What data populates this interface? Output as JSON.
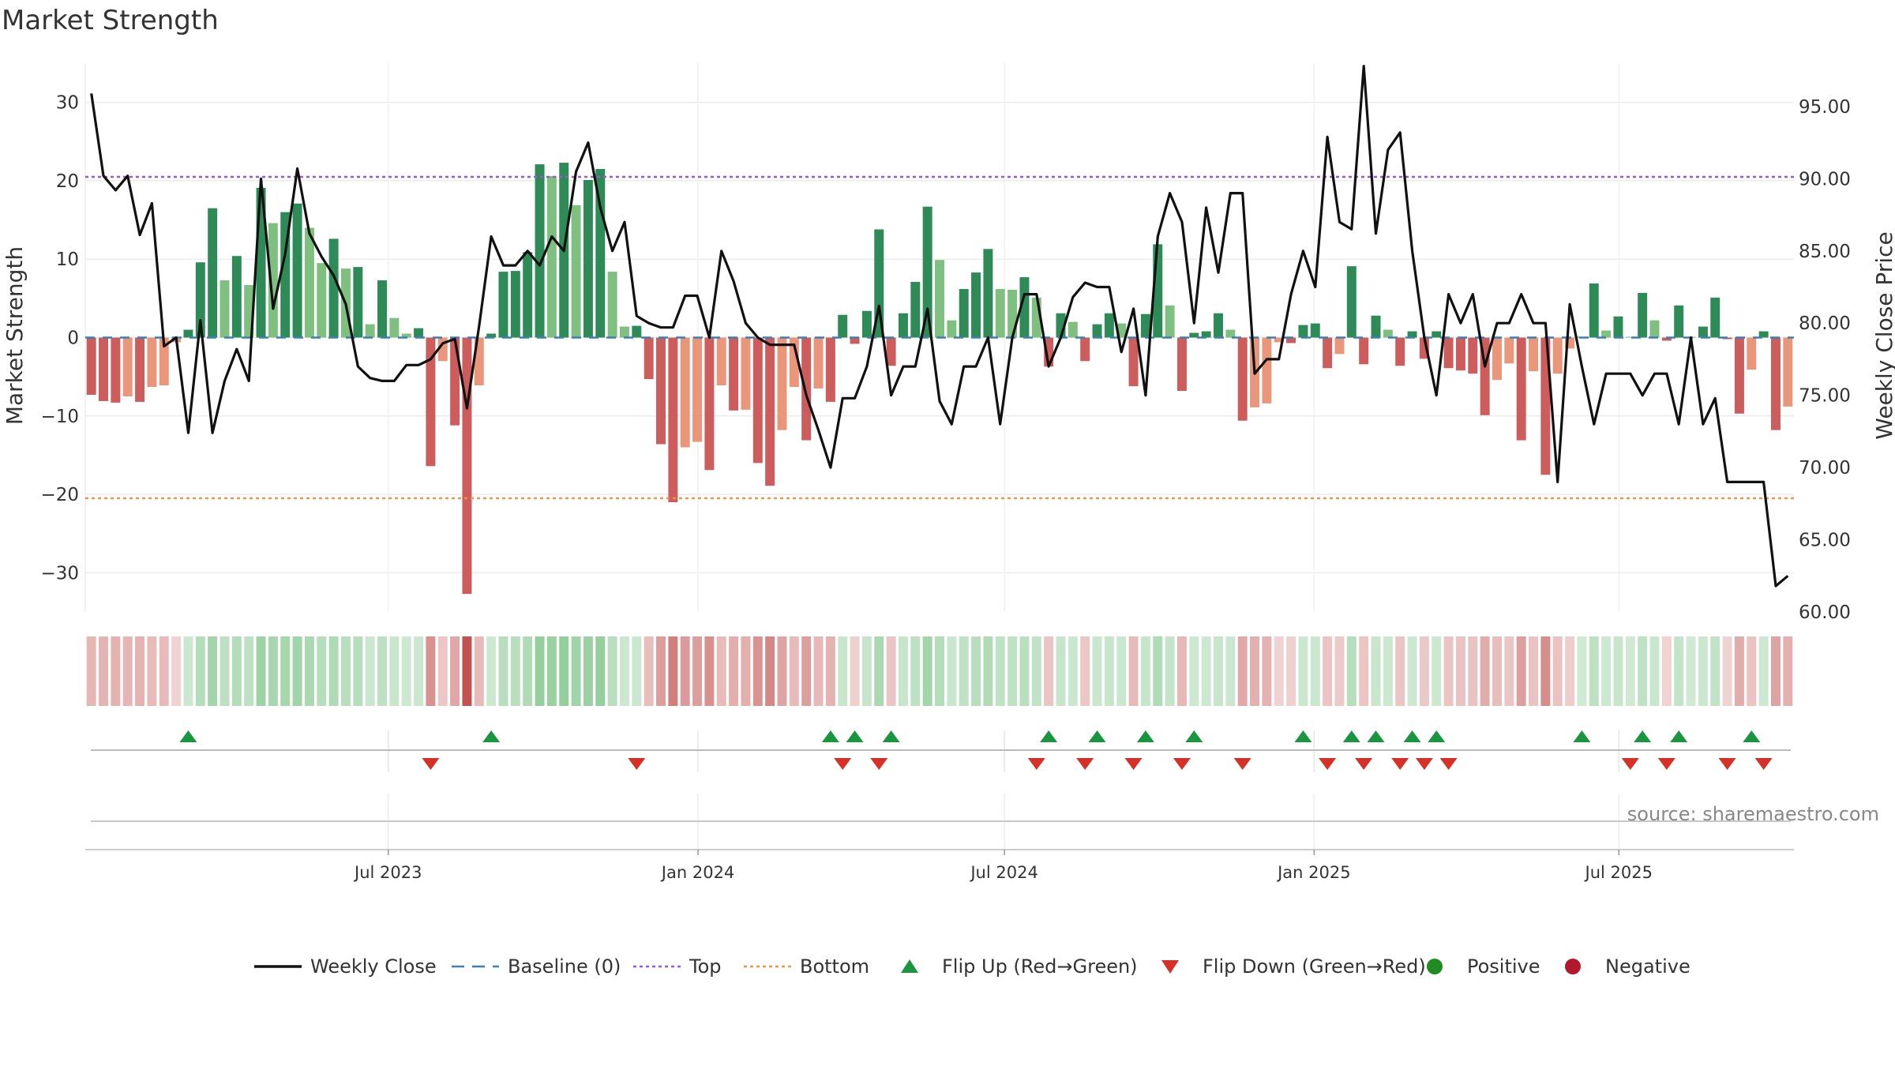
{
  "chart_data": {
    "type": "bar",
    "title": "Market Strength",
    "ylabel": "Market Strength",
    "ylabel_right": "Weekly Close Price",
    "ylim": [
      -35,
      35
    ],
    "yticks": [
      30,
      20,
      10,
      0,
      -10,
      -20,
      -30
    ],
    "ytick_labels": [
      "30",
      "20",
      "10",
      "0",
      "−10",
      "−20",
      "−30"
    ],
    "ylim_right": [
      60,
      98
    ],
    "yticks_right": [
      95,
      90,
      85,
      80,
      75,
      70,
      65,
      60
    ],
    "ytick_labels_right": [
      "95.00",
      "90.00",
      "85.00",
      "80.00",
      "75.00",
      "70.00",
      "65.00",
      "60.00"
    ],
    "top_line": 20.5,
    "bottom_line": -20.5,
    "x_start": "2023-01-02",
    "x_end": "2025-10-13",
    "date_ticks": [
      {
        "date": "2023-07-01",
        "label": "Jul 2023"
      },
      {
        "date": "2024-01-01",
        "label": "Jan 2024"
      },
      {
        "date": "2024-07-01",
        "label": "Jul 2024"
      },
      {
        "date": "2025-01-01",
        "label": "Jan 2025"
      },
      {
        "date": "2025-07-01",
        "label": "Jul 2025"
      }
    ],
    "strength": [
      -7.3,
      -8.1,
      -8.3,
      -7.5,
      -8.2,
      -6.3,
      -6.1,
      -0.6,
      1.0,
      9.6,
      16.5,
      7.3,
      10.4,
      6.7,
      19.1,
      14.6,
      16.0,
      17.1,
      14.0,
      9.5,
      12.6,
      8.8,
      9.0,
      1.7,
      7.3,
      2.5,
      0.5,
      1.2,
      -16.4,
      -3.0,
      -11.2,
      -32.7,
      -6.1,
      0.5,
      8.4,
      8.5,
      10.9,
      22.1,
      20.6,
      22.3,
      16.9,
      20.1,
      21.5,
      8.4,
      1.4,
      1.5,
      -5.3,
      -13.6,
      -21.0,
      -14.0,
      -13.3,
      -16.9,
      -6.1,
      -9.3,
      -9.2,
      -16.0,
      -18.9,
      -11.8,
      -6.3,
      -13.1,
      -6.5,
      -8.2,
      2.9,
      -0.8,
      3.4,
      13.8,
      -3.6,
      3.1,
      7.1,
      16.7,
      9.9,
      2.2,
      6.2,
      8.3,
      11.3,
      6.2,
      6.1,
      7.7,
      5.1,
      -3.7,
      3.1,
      2.0,
      -3.0,
      1.7,
      3.1,
      1.8,
      -6.2,
      3.0,
      11.9,
      4.1,
      -6.8,
      0.6,
      0.8,
      3.1,
      1.0,
      -10.6,
      -8.9,
      -8.4,
      -0.6,
      -0.7,
      1.6,
      1.8,
      -3.9,
      -2.1,
      9.1,
      -3.4,
      2.8,
      1.0,
      -3.6,
      0.8,
      -2.7,
      0.8,
      -3.9,
      -4.2,
      -4.6,
      -9.9,
      -5.4,
      -3.3,
      -13.1,
      -4.3,
      -17.5,
      -4.6,
      -1.4,
      0.1,
      6.9,
      0.9,
      2.7,
      0.1,
      5.7,
      2.2,
      -0.4,
      4.1,
      0.1,
      1.4,
      5.1,
      -0.2,
      -9.7,
      -4.1,
      0.8,
      -11.8,
      -8.8
    ],
    "weekly_close": [
      95.9,
      90.2,
      89.2,
      90.2,
      86.1,
      88.3,
      78.4,
      79.0,
      72.4,
      80.2,
      72.4,
      76.0,
      78.2,
      76.0,
      90.0,
      81.0,
      84.8,
      90.7,
      86.2,
      84.6,
      83.3,
      81.3,
      77.0,
      76.2,
      76.0,
      76.0,
      77.1,
      77.1,
      77.5,
      78.6,
      78.9,
      74.1,
      79.8,
      86.0,
      84.0,
      84.0,
      85.0,
      84.0,
      86.0,
      85.0,
      90.5,
      92.5,
      88.0,
      85.0,
      87.0,
      80.5,
      80.0,
      79.7,
      79.7,
      81.9,
      81.9,
      79.0,
      85.0,
      82.9,
      80.0,
      79.0,
      78.5,
      78.5,
      78.5,
      75.0,
      72.6,
      70.0,
      74.8,
      74.8,
      77.0,
      81.2,
      75.0,
      77.0,
      77.0,
      81.0,
      74.6,
      73.0,
      77.0,
      77.0,
      79.0,
      73.0,
      79.0,
      82.0,
      82.0,
      77.0,
      79.0,
      81.8,
      82.8,
      82.5,
      82.5,
      78.0,
      81.0,
      75.0,
      86.0,
      89.0,
      87.0,
      80.0,
      88.0,
      83.5,
      89.0,
      89.0,
      76.5,
      77.5,
      77.5,
      82.0,
      85.0,
      82.5,
      92.9,
      87.0,
      86.5,
      97.8,
      86.2,
      92.0,
      93.2,
      85.0,
      79.0,
      75.0,
      82.0,
      80.0,
      82.0,
      77.0,
      80.0,
      80.0,
      82.0,
      80.0,
      80.0,
      69.0,
      81.3,
      77.0,
      73.0,
      76.5,
      76.5,
      76.5,
      75.0,
      76.5,
      76.5,
      73.0,
      79.0,
      73.0,
      74.8,
      69.0,
      69.0,
      69.0,
      69.0,
      61.8,
      62.5
    ],
    "flip_up": [
      8,
      33,
      61,
      63,
      66,
      79,
      83,
      87,
      91,
      100,
      104,
      106,
      109,
      111,
      123,
      128,
      131,
      137
    ],
    "flip_down": [
      28,
      45,
      62,
      65,
      78,
      82,
      86,
      90,
      95,
      102,
      105,
      108,
      110,
      112,
      127,
      130,
      135,
      138
    ],
    "legend": [
      {
        "label": "Weekly Close",
        "kind": "line",
        "color": "#111111"
      },
      {
        "label": "Baseline (0)",
        "kind": "dash",
        "color": "#3b7fb5"
      },
      {
        "label": "Top",
        "kind": "dot",
        "color": "#9b59d0"
      },
      {
        "label": "Bottom",
        "kind": "dot",
        "color": "#e8954e"
      },
      {
        "label": "Flip Up (Red→Green)",
        "kind": "tri-up",
        "color": "#1a9641"
      },
      {
        "label": "Flip Down (Green→Red)",
        "kind": "tri-down",
        "color": "#d73027"
      },
      {
        "label": "Positive",
        "kind": "circle",
        "color": "#228b22"
      },
      {
        "label": "Negative",
        "kind": "circle",
        "color": "#b2182b"
      }
    ],
    "legend_position": "bottom-center",
    "grid": true
  },
  "source": "source: sharemaestro.com",
  "colors": {
    "pos_strong": "#2e8b57",
    "pos_light": "#7fbf7f",
    "neg_strong": "#cd5c5c",
    "neg_light": "#e9967a",
    "close_line": "#111111"
  }
}
